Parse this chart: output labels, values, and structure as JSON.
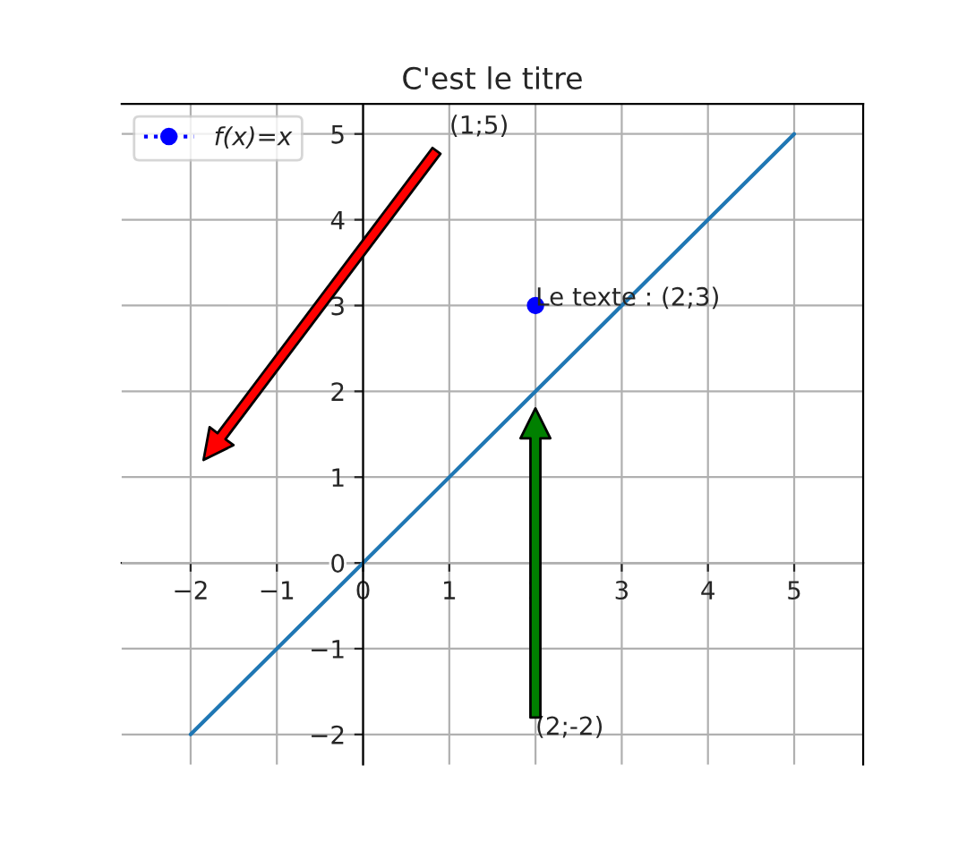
{
  "chart_data": {
    "type": "line",
    "title": "C'est le titre",
    "series": [
      {
        "color": "#1f77b4",
        "x": [
          -2,
          5
        ],
        "values": [
          -2,
          5
        ],
        "marker": "none",
        "line_style": "solid"
      },
      {
        "type": "scatter",
        "name": "f(x)=x",
        "color": "#0000ff",
        "x": [
          2
        ],
        "values": [
          3
        ],
        "marker": "circle",
        "line_style": "dotted"
      }
    ],
    "xlim": [
      -2.8,
      5.8
    ],
    "ylim": [
      -2.35,
      5.35
    ],
    "xticks": [
      {
        "value": -2,
        "label": "−2"
      },
      {
        "value": -1,
        "label": "−1"
      },
      0,
      1,
      2,
      3,
      4,
      5
    ],
    "yticks": [
      {
        "value": -2,
        "label": "−2"
      },
      {
        "value": -1,
        "label": "−1"
      },
      0,
      1,
      2,
      3,
      4,
      5
    ],
    "grid": true,
    "legend": "top left",
    "annotations": [
      "(1;5)",
      {
        "text": "Le texte : (2;3)",
        "x": 2,
        "y": 3
      },
      "(2;-2)"
    ]
  }
}
